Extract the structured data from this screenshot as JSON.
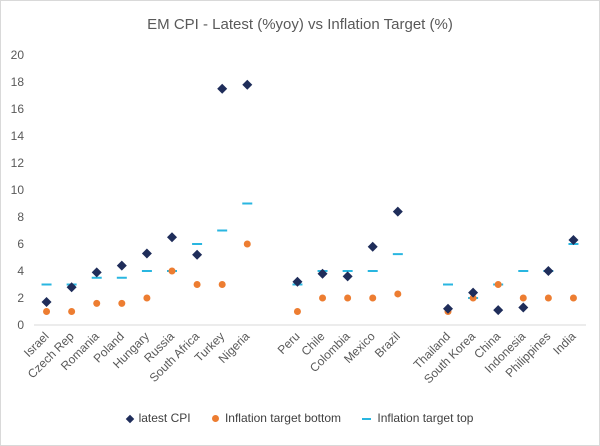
{
  "chart_data": {
    "type": "scatter",
    "title": "EM CPI - Latest (%yoy) vs Inflation Target (%)",
    "xlabel": "",
    "ylabel": "",
    "ylim": [
      0,
      20
    ],
    "yticks": [
      0,
      2,
      4,
      6,
      8,
      10,
      12,
      14,
      16,
      18,
      20
    ],
    "grid": false,
    "legend_position": "bottom",
    "categories": [
      "Israel",
      "Czech Rep",
      "Romania",
      "Poland",
      "Hungary",
      "Russia",
      "South Africa",
      "Turkey",
      "Nigeria",
      "",
      "Peru",
      "Chile",
      "Colombia",
      "Mexico",
      "Brazil",
      "",
      "Thailand",
      "South Korea",
      "China",
      "Indonesia",
      "Philippines",
      "India"
    ],
    "series": [
      {
        "name": "latest CPI",
        "marker": "diamond",
        "color": "#1f2d5a",
        "values": [
          1.7,
          2.8,
          3.9,
          4.4,
          5.3,
          6.5,
          5.2,
          17.5,
          17.8,
          null,
          3.2,
          3.8,
          3.6,
          5.8,
          8.4,
          null,
          1.2,
          2.4,
          1.1,
          1.3,
          4.0,
          6.3
        ]
      },
      {
        "name": "Inflation target bottom",
        "marker": "circle",
        "color": "#ed7d31",
        "values": [
          1.0,
          1.0,
          1.6,
          1.6,
          2.0,
          4.0,
          3.0,
          3.0,
          6.0,
          null,
          1.0,
          2.0,
          2.0,
          2.0,
          2.3,
          null,
          1.0,
          2.0,
          3.0,
          2.0,
          2.0,
          2.0
        ]
      },
      {
        "name": "Inflation target top",
        "marker": "dash",
        "color": "#29b6e0",
        "values": [
          3.0,
          3.0,
          3.5,
          3.5,
          4.0,
          4.0,
          6.0,
          7.0,
          9.0,
          null,
          3.0,
          4.0,
          4.0,
          4.0,
          5.25,
          null,
          3.0,
          2.0,
          3.0,
          4.0,
          4.0,
          6.0
        ]
      }
    ]
  }
}
